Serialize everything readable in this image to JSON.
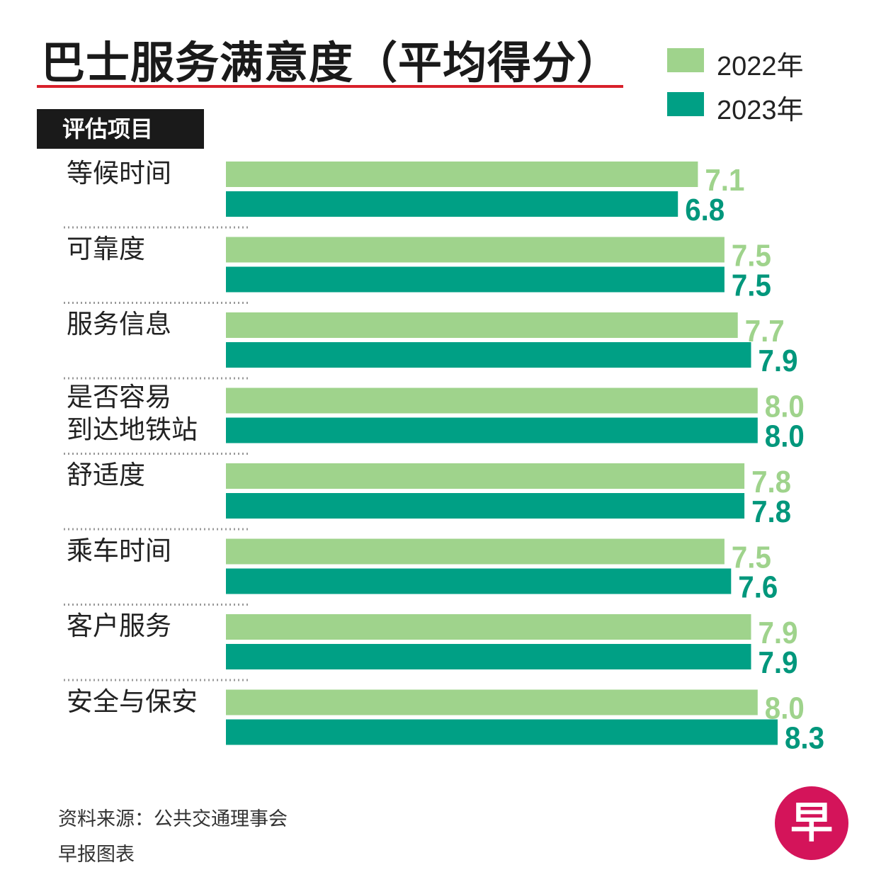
{
  "title": "巴士服务满意度（平均得分）",
  "column_header": "评估项目",
  "legend": [
    {
      "label": "2022年",
      "color": "#9fd38c"
    },
    {
      "label": "2023年",
      "color": "#00a085"
    }
  ],
  "footer": {
    "source": "资料来源：公共交通理事会",
    "credit": "早报图表"
  },
  "logo": {
    "text": "早",
    "color": "#d4145a"
  },
  "chart_data": {
    "type": "bar",
    "orientation": "horizontal",
    "title": "巴士服务满意度（平均得分）",
    "categories": [
      "等候时间",
      "可靠度",
      "服务信息",
      "是否容易\n到达地铁站",
      "舒适度",
      "乘车时间",
      "客户服务",
      "安全与保安"
    ],
    "series": [
      {
        "name": "2022年",
        "color": "#9fd38c",
        "label_color": "#9fd38c",
        "values": [
          7.1,
          7.5,
          7.7,
          8.0,
          7.8,
          7.5,
          7.9,
          8.0
        ]
      },
      {
        "name": "2023年",
        "color": "#00a085",
        "label_color": "#00977c",
        "values": [
          6.8,
          7.5,
          7.9,
          8.0,
          7.8,
          7.6,
          7.9,
          8.3
        ]
      }
    ],
    "xlim": [
      0,
      8.3
    ],
    "grid": false,
    "legend_position": "top-right"
  }
}
